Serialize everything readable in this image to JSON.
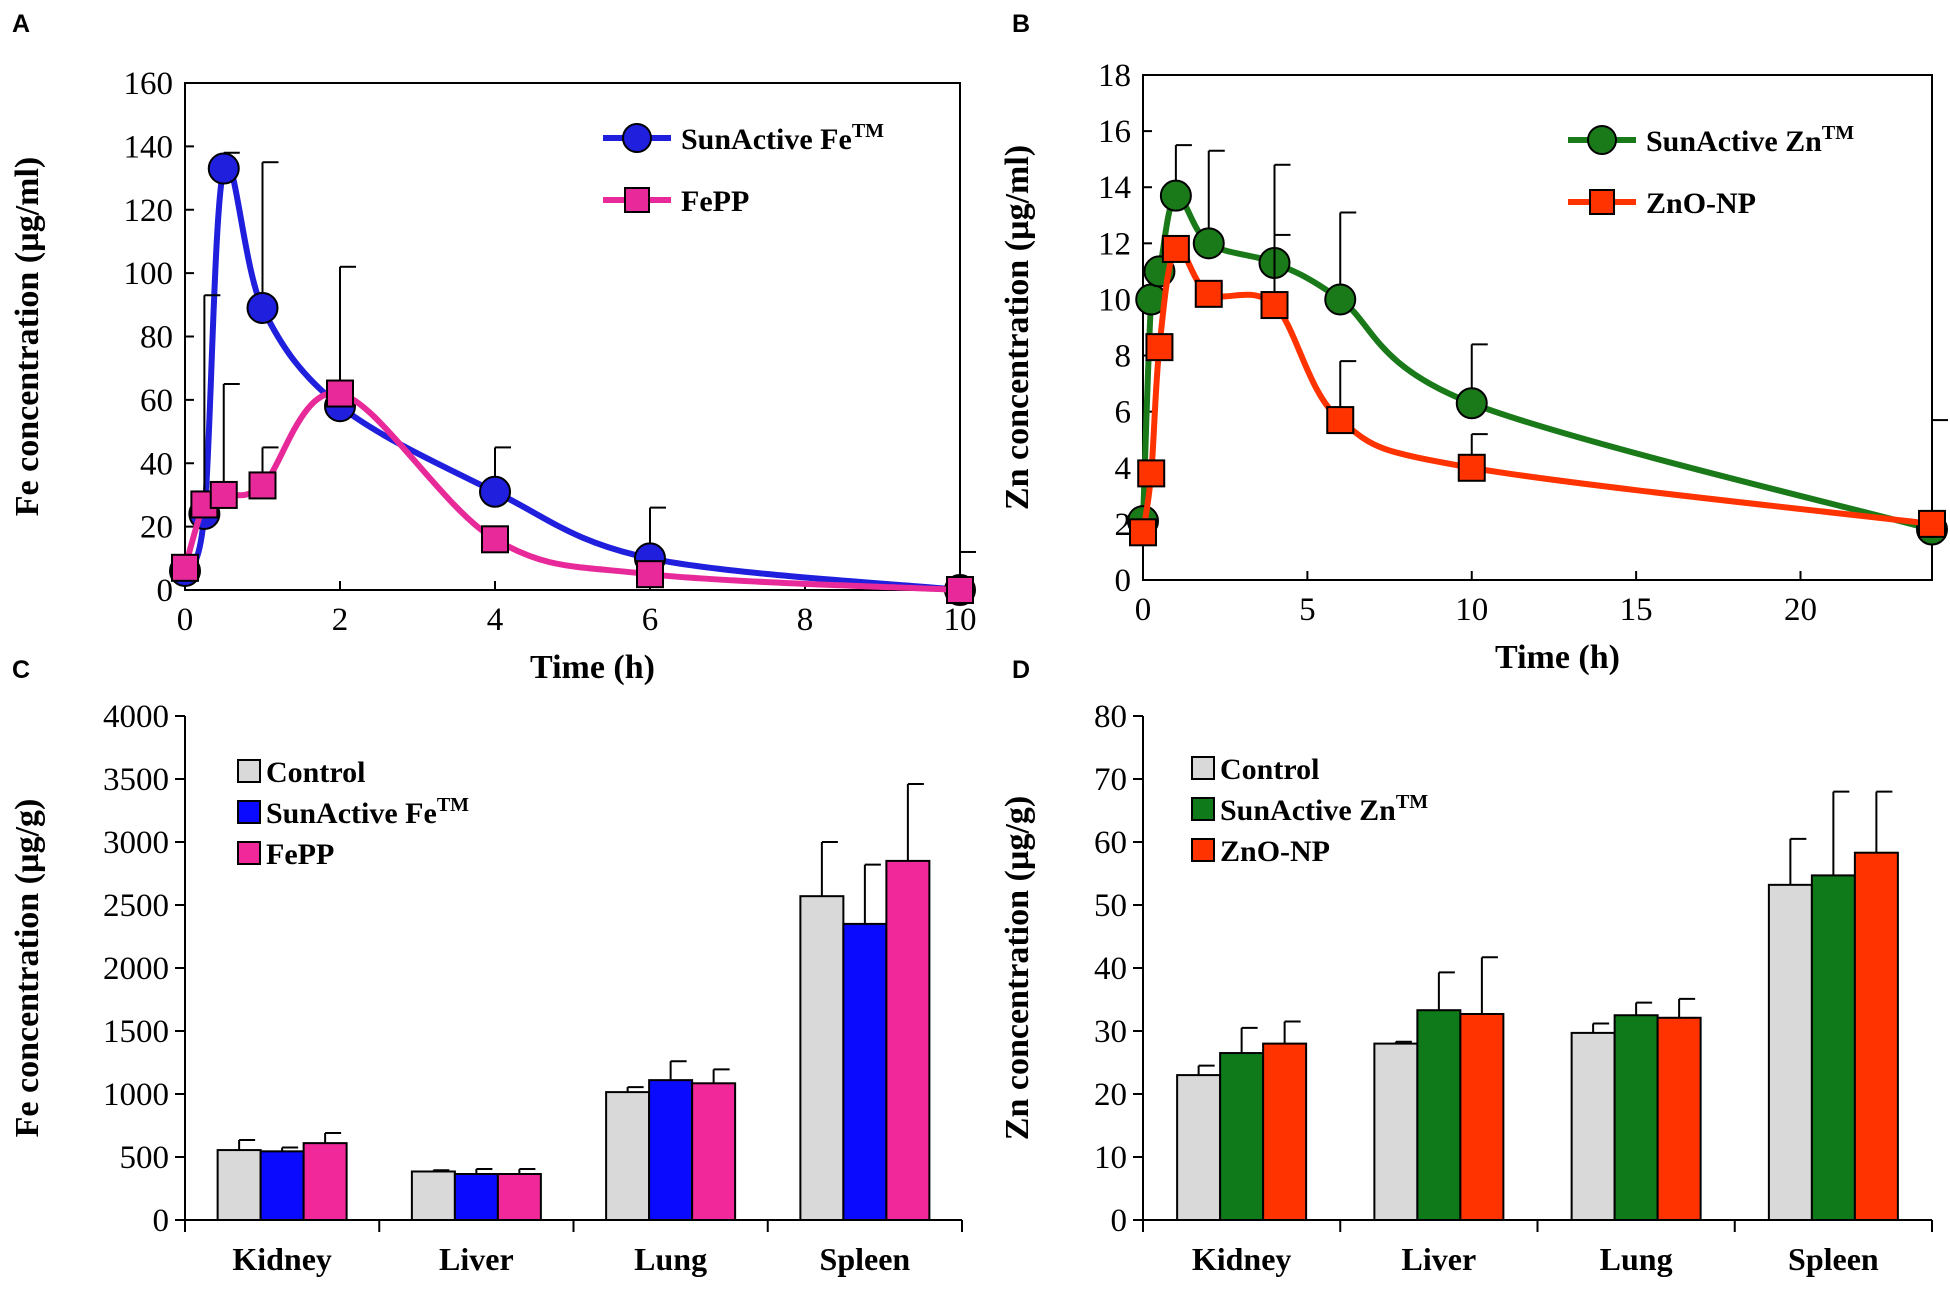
{
  "chart_data": [
    {
      "panel": "A",
      "type": "line",
      "xlabel": "Time (h)",
      "ylabel": "Fe concentration (µg/ml)",
      "xlim": [
        0,
        10
      ],
      "ylim": [
        0,
        160
      ],
      "xticks": [
        "0",
        "2",
        "4",
        "6",
        "8",
        "10"
      ],
      "yticks": [
        "0",
        "20",
        "40",
        "60",
        "80",
        "100",
        "120",
        "140",
        "160"
      ],
      "legend_position": "top-right",
      "series": [
        {
          "name": "SunActive Fe",
          "superscript": "TM",
          "color": "#1f1fdd",
          "marker": "circle",
          "x": [
            0,
            0.25,
            0.5,
            1,
            2,
            4,
            6,
            10
          ],
          "y": [
            6,
            24,
            133,
            89,
            58,
            31,
            10,
            0
          ],
          "err": [
            0,
            0,
            5,
            46,
            0,
            14,
            16,
            12
          ]
        },
        {
          "name": "FePP",
          "superscript": "",
          "color": "#e8299a",
          "marker": "square",
          "x": [
            0,
            0.25,
            0.5,
            1,
            2,
            4,
            6,
            10
          ],
          "y": [
            7,
            27,
            30,
            33,
            62,
            16,
            5,
            0
          ],
          "err": [
            0,
            66,
            35,
            12,
            40,
            0,
            0,
            0
          ]
        }
      ]
    },
    {
      "panel": "B",
      "type": "line",
      "xlabel": "Time (h)",
      "ylabel": "Zn concentration (µg/ml)",
      "xlim": [
        0,
        24
      ],
      "ylim": [
        0,
        18
      ],
      "xticks": [
        "0",
        "5",
        "10",
        "15",
        "20"
      ],
      "yticks": [
        "0",
        "2",
        "4",
        "6",
        "8",
        "10",
        "12",
        "14",
        "16",
        "18"
      ],
      "legend_position": "top-right",
      "series": [
        {
          "name": "SunActive Zn",
          "superscript": "TM",
          "color": "#1a7a1a",
          "marker": "circle",
          "x": [
            0,
            0.25,
            0.5,
            1,
            2,
            4,
            6,
            10,
            24
          ],
          "y": [
            2.1,
            10,
            11,
            13.7,
            12,
            11.3,
            10,
            6.3,
            1.8
          ],
          "err": [
            0,
            0,
            0,
            1.8,
            3.3,
            3.5,
            3.1,
            2.1,
            3.9
          ]
        },
        {
          "name": "ZnO-NP",
          "superscript": "",
          "color": "#ff3300",
          "marker": "square",
          "x": [
            0,
            0.25,
            0.5,
            1,
            2,
            4,
            6,
            10,
            24
          ],
          "y": [
            1.7,
            3.8,
            8.3,
            11.8,
            10.2,
            9.8,
            5.7,
            4,
            2
          ],
          "err": [
            0,
            0,
            0,
            0,
            0,
            2.5,
            2.1,
            1.2,
            0
          ]
        }
      ]
    },
    {
      "panel": "C",
      "type": "bar",
      "ylabel": "Fe concentration (µg/g)",
      "ylim": [
        0,
        4000
      ],
      "yticks": [
        "0",
        "500",
        "1000",
        "1500",
        "2000",
        "2500",
        "3000",
        "3500",
        "4000"
      ],
      "categories": [
        "Kidney",
        "Liver",
        "Lung",
        "Spleen"
      ],
      "legend_position": "top-left",
      "series": [
        {
          "name": "Control",
          "superscript": "",
          "color": "#d9d9d9",
          "values": [
            555,
            385,
            1015,
            2570
          ],
          "err": [
            80,
            10,
            40,
            430
          ]
        },
        {
          "name": "SunActive Fe",
          "superscript": "TM",
          "color": "#0a0aff",
          "values": [
            545,
            365,
            1110,
            2350
          ],
          "err": [
            30,
            40,
            150,
            470
          ]
        },
        {
          "name": "FePP",
          "superscript": "",
          "color": "#f0289a",
          "values": [
            610,
            365,
            1085,
            2850
          ],
          "err": [
            80,
            40,
            110,
            610
          ]
        }
      ]
    },
    {
      "panel": "D",
      "type": "bar",
      "ylabel": "Zn concentration (µg/g)",
      "ylim": [
        0,
        80
      ],
      "yticks": [
        "0",
        "10",
        "20",
        "30",
        "40",
        "50",
        "60",
        "70",
        "80"
      ],
      "categories": [
        "Kidney",
        "Liver",
        "Lung",
        "Spleen"
      ],
      "legend_position": "top-left",
      "series": [
        {
          "name": "Control",
          "superscript": "",
          "color": "#d9d9d9",
          "values": [
            23,
            28,
            29.7,
            53.2
          ],
          "err": [
            1.5,
            0.3,
            1.5,
            7.3
          ]
        },
        {
          "name": "SunActive Zn",
          "superscript": "TM",
          "color": "#0f7a1a",
          "values": [
            26.5,
            33.3,
            32.5,
            54.7
          ],
          "err": [
            4,
            6,
            2,
            13.3
          ]
        },
        {
          "name": "ZnO-NP",
          "superscript": "",
          "color": "#ff3300",
          "values": [
            28,
            32.7,
            32.1,
            58.3
          ],
          "err": [
            3.5,
            9,
            3,
            9.7
          ]
        }
      ]
    }
  ]
}
